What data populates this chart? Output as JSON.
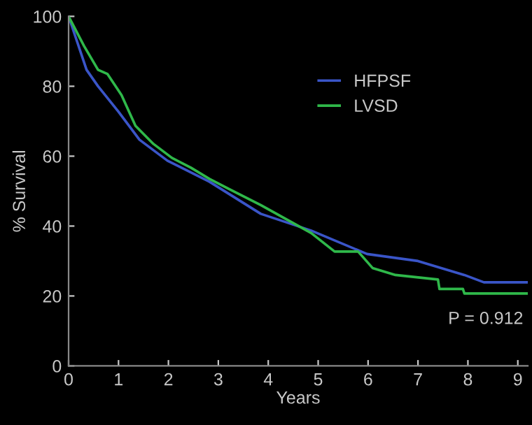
{
  "chart_data": {
    "type": "line",
    "xlabel": "Years",
    "ylabel": "% Survival",
    "xlim": [
      0,
      9.2
    ],
    "xticks": [
      0,
      1,
      2,
      3,
      4,
      5,
      6,
      7,
      8,
      9
    ],
    "ylim": [
      0,
      100
    ],
    "yticks": [
      0,
      20,
      40,
      60,
      80,
      100
    ],
    "legend": "top right",
    "grid": false,
    "annotations": [
      "P = 0.912"
    ],
    "series": [
      {
        "name": "HFPSF",
        "color": "#3a55c8",
        "x": [
          0,
          0.36,
          0.59,
          1.0,
          1.42,
          1.98,
          2.82,
          3.85,
          4.86,
          5.98,
          7.0,
          7.93,
          8.32,
          9.2
        ],
        "values": [
          100,
          84.7,
          80,
          72.7,
          64.7,
          58.7,
          52.7,
          43.5,
          38.7,
          32,
          30,
          26,
          23.9,
          23.9
        ]
      },
      {
        "name": "LVSD",
        "color": "#2fb84a",
        "x": [
          0,
          0.31,
          0.59,
          0.78,
          1.06,
          1.34,
          1.7,
          2.07,
          2.45,
          2.82,
          3.2,
          3.85,
          4.86,
          5.33,
          5.8,
          6.09,
          6.55,
          7.4,
          7.43,
          7.9,
          7.93,
          9.2
        ],
        "values": [
          100,
          91.5,
          84.7,
          83.5,
          77.5,
          68.7,
          63.5,
          59.5,
          56.7,
          53.5,
          50.7,
          46,
          38,
          32.7,
          32.7,
          28,
          26,
          24.7,
          22,
          22,
          20.7,
          20.7
        ]
      }
    ]
  }
}
